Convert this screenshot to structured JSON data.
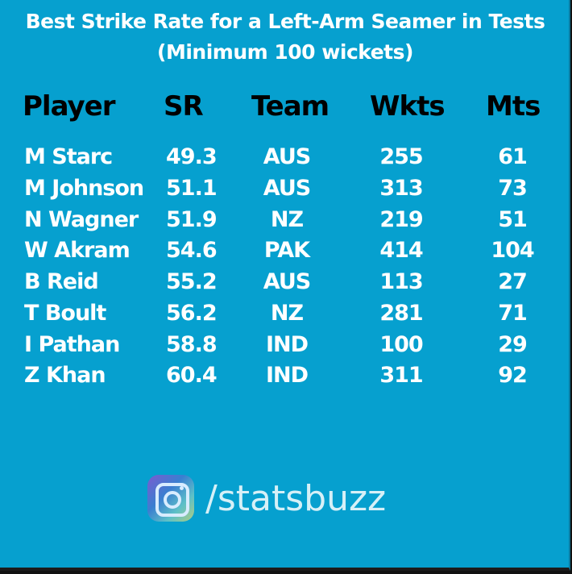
{
  "title_line1": "Best Strike Rate for a Left-Arm Seamer in Tests",
  "title_line2": "(Minimum 100 wickets)",
  "headers": {
    "player": "Player",
    "sr": "SR",
    "team": "Team",
    "wkts": "Wkts",
    "mts": "Mts"
  },
  "rows": [
    {
      "player": "M Starc",
      "sr": "49.3",
      "team": "AUS",
      "wkts": "255",
      "mts": "61"
    },
    {
      "player": "M Johnson",
      "sr": "51.1",
      "team": "AUS",
      "wkts": "313",
      "mts": "73"
    },
    {
      "player": "N Wagner",
      "sr": "51.9",
      "team": "NZ",
      "wkts": "219",
      "mts": "51"
    },
    {
      "player": "W Akram",
      "sr": "54.6",
      "team": "PAK",
      "wkts": "414",
      "mts": "104"
    },
    {
      "player": "B Reid",
      "sr": "55.2",
      "team": "AUS",
      "wkts": "113",
      "mts": "27"
    },
    {
      "player": "T Boult",
      "sr": "56.2",
      "team": "NZ",
      "wkts": "281",
      "mts": "71"
    },
    {
      "player": "I Pathan",
      "sr": "58.8",
      "team": "IND",
      "wkts": "100",
      "mts": "29"
    },
    {
      "player": "Z Khan",
      "sr": "60.4",
      "team": "IND",
      "wkts": "311",
      "mts": "92"
    }
  ],
  "brand": {
    "icon": "instagram-icon",
    "handle": "/statsbuzz"
  },
  "colors": {
    "background": "#06a0cf",
    "header_text": "#000000",
    "body_text": "#ffffff"
  }
}
